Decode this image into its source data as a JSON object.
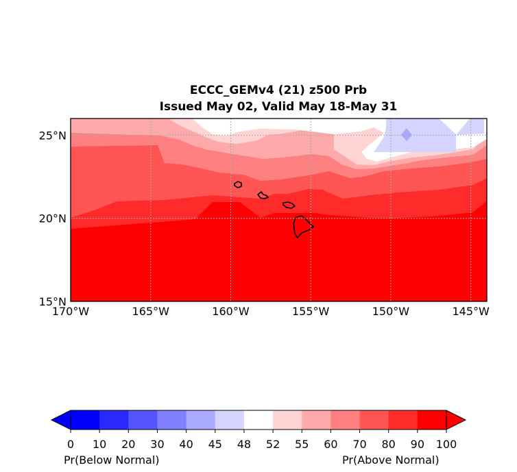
{
  "title": {
    "line1": "ECCC_GEMv4 (21) z500 Prb",
    "line2": "Issued May 02, Valid May 18-May 31"
  },
  "map": {
    "lon_range": [
      -170,
      -144
    ],
    "lat_range": [
      15,
      26
    ],
    "lon_ticks": [
      {
        "value": -170,
        "label": "170°W"
      },
      {
        "value": -165,
        "label": "165°W"
      },
      {
        "value": -160,
        "label": "160°W"
      },
      {
        "value": -155,
        "label": "155°W"
      },
      {
        "value": -150,
        "label": "150°W"
      },
      {
        "value": -145,
        "label": "145°W"
      }
    ],
    "lat_ticks": [
      {
        "value": 15,
        "label": "15°N"
      },
      {
        "value": 20,
        "label": "20°N"
      },
      {
        "value": 25,
        "label": "25°N"
      }
    ],
    "gridlines": true
  },
  "colorbar": {
    "levels": [
      "0",
      "10",
      "20",
      "30",
      "40",
      "45",
      "48",
      "52",
      "55",
      "60",
      "70",
      "80",
      "90",
      "100"
    ],
    "colors": [
      "#0000ff",
      "#2a2aff",
      "#5555ff",
      "#8080ff",
      "#aaaaff",
      "#d4d4ff",
      "#ffffff",
      "#ffd4d4",
      "#ffaaaa",
      "#ff8080",
      "#ff5555",
      "#ff2a2a",
      "#ff0000"
    ],
    "extend_low_color": "#0000ff",
    "extend_high_color": "#ff0000",
    "left_label": "Pr(Below Normal)",
    "right_label": "Pr(Above Normal)"
  }
}
